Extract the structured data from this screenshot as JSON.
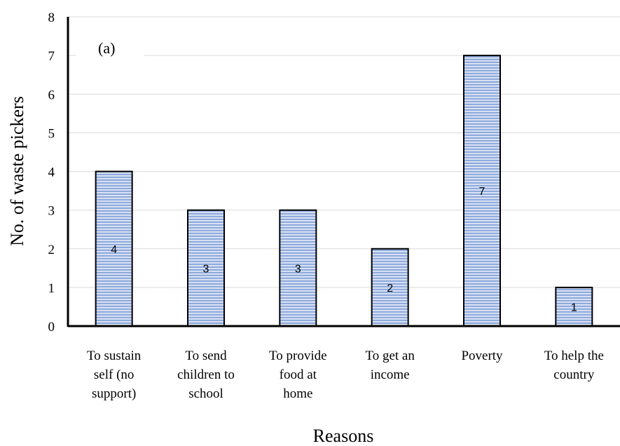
{
  "chart_data": {
    "type": "bar",
    "panel_label": "(a)",
    "title": "",
    "xlabel": "Reasons",
    "ylabel": "No. of waste pickers",
    "ylim": [
      0,
      8
    ],
    "yticks": [
      0,
      1,
      2,
      3,
      4,
      5,
      6,
      7,
      8
    ],
    "grid": true,
    "categories": [
      [
        "To sustain",
        "self (no",
        "support)"
      ],
      [
        "To send",
        "children to",
        "school"
      ],
      [
        "To provide",
        "food at",
        "home"
      ],
      [
        "To get an",
        "income"
      ],
      [
        "Poverty"
      ],
      [
        "To help the",
        "country"
      ]
    ],
    "values": [
      4,
      3,
      3,
      2,
      7,
      1
    ],
    "data_labels": [
      "4",
      "3",
      "3",
      "2",
      "7",
      "1"
    ],
    "bar_fill": "#8faadc",
    "bar_stripe": "#e8eef9",
    "bar_stroke": "#000000"
  }
}
